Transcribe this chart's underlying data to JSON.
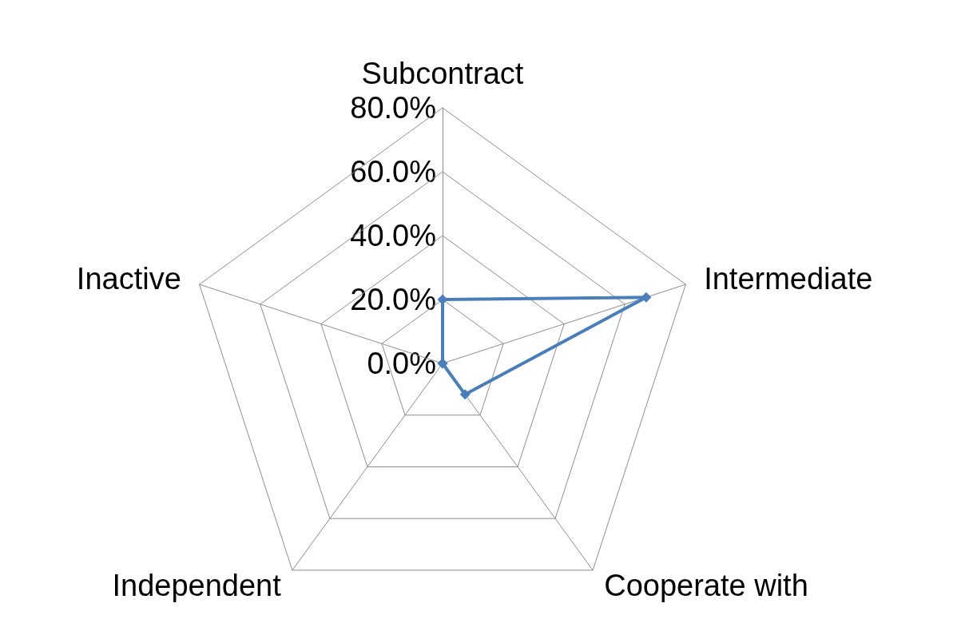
{
  "chart_data": {
    "type": "radar",
    "categories": [
      "Subcontract",
      "Intermediate",
      "Cooperate with",
      "Independent",
      "Inactive"
    ],
    "series": [
      {
        "color": "#4a7ebb",
        "values": [
          20,
          67,
          12,
          0,
          0
        ]
      }
    ],
    "ylim": [
      0,
      80
    ],
    "yticks": [
      {
        "value": 0,
        "label": "0.0%"
      },
      {
        "value": 20,
        "label": "20.0%"
      },
      {
        "value": 40,
        "label": "40.0%"
      },
      {
        "value": 60,
        "label": "60.0%"
      },
      {
        "value": 80,
        "label": "80.0%"
      }
    ],
    "marker": "diamond",
    "line_style": "solid"
  }
}
